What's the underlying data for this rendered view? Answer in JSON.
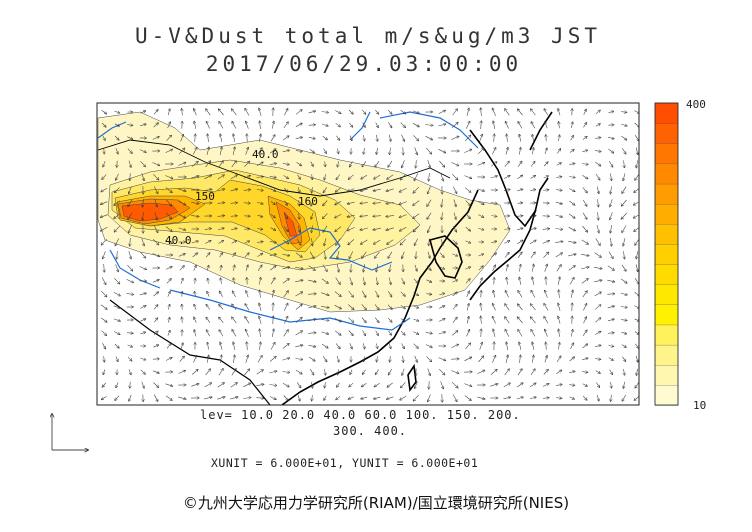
{
  "title": {
    "line1": "U-V&Dust total m/s&ug/m3 JST",
    "line2": "2017/06/29.03:00:00"
  },
  "levels": {
    "line1": "lev= 10.0 20.0 40.0 60.0 100. 150. 200.",
    "line2": "300. 400.",
    "values": [
      10,
      20,
      40,
      60,
      100,
      150,
      200,
      300,
      400
    ]
  },
  "units": {
    "text": "XUNIT = 6.000E+01, YUNIT = 6.000E+01"
  },
  "colorbar": {
    "max_label": "400",
    "min_label": "10",
    "colors": [
      "#fffbd0",
      "#fff7b0",
      "#fff489",
      "#fff25a",
      "#fff100",
      "#ffe800",
      "#ffdc00",
      "#ffcf00",
      "#ffc000",
      "#ffae00",
      "#ff9c00",
      "#ff8a00",
      "#ff7600",
      "#ff6200",
      "#ff4e00"
    ]
  },
  "contour_labels": [
    "40.0",
    "150",
    "160",
    "40.0"
  ],
  "credit": "©九州大学応用力学研究所(RIAM)/国立環境研究所(NIES)",
  "colors": {
    "coast": "#000000",
    "river": "#1e6fd6",
    "dust_low": "#fff5bf",
    "dust_high": "#ff4e00"
  },
  "icons": [
    "wind-arrow-icon",
    "reference-vector-icon"
  ]
}
